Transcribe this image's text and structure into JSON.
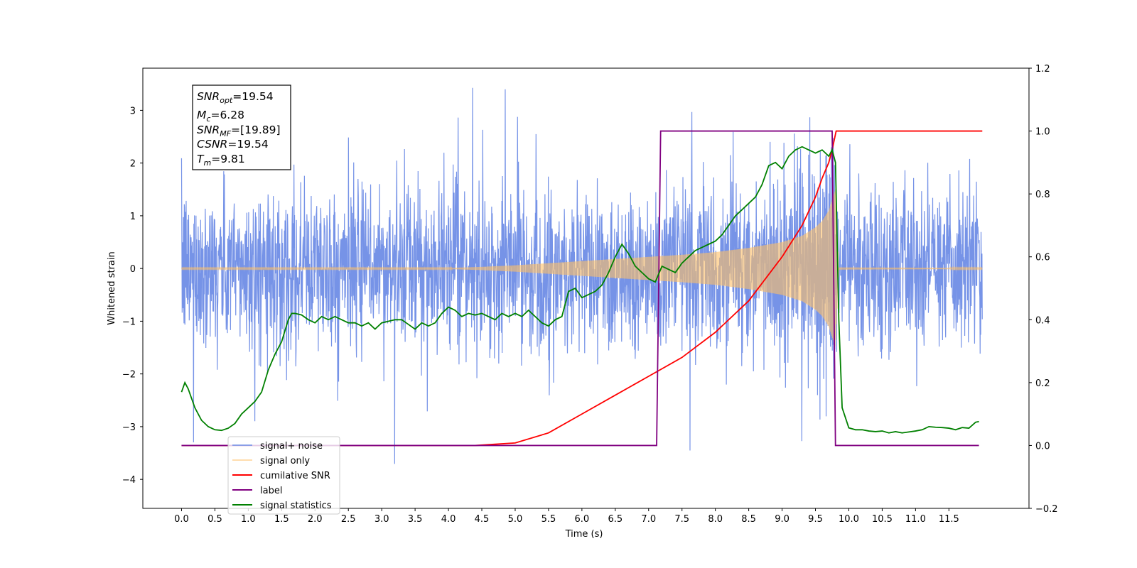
{
  "chart_data": {
    "type": "line",
    "xlabel": "Time (s)",
    "ylabel_left": "Whitened strain",
    "ylabel_right": "",
    "xlim": [
      -0.58,
      12.7
    ],
    "ylim_left": [
      -4.55,
      3.8
    ],
    "ylim_right": [
      -0.2,
      1.2
    ],
    "x_ticks": [
      0.0,
      0.5,
      1.0,
      1.5,
      2.0,
      2.5,
      3.0,
      3.5,
      4.0,
      4.5,
      5.0,
      5.5,
      6.0,
      6.5,
      7.0,
      7.5,
      8.0,
      8.5,
      9.0,
      9.5,
      10.0,
      10.5,
      11.0,
      11.5
    ],
    "x_tick_labels": [
      "0.0",
      "0.5",
      "1.0",
      "1.5",
      "2.0",
      "2.5",
      "3.0",
      "3.5",
      "4.0",
      "4.5",
      "5.0",
      "5.5",
      "6.0",
      "6.5",
      "7.0",
      "7.5",
      "8.0",
      "8.5",
      "9.0",
      "9.5",
      "10.0",
      "10.5",
      "11.0",
      "11.5"
    ],
    "y_left_ticks": [
      3,
      2,
      1,
      0,
      -1,
      -2,
      -3,
      -4
    ],
    "y_left_tick_labels": [
      "3",
      "2",
      "1",
      "0",
      "−1",
      "−2",
      "−3",
      "−4"
    ],
    "y_right_ticks": [
      1.2,
      1.0,
      0.8,
      0.6,
      0.4,
      0.2,
      0.0,
      -0.2
    ],
    "y_right_tick_labels": [
      "1.2",
      "1.0",
      "0.8",
      "0.6",
      "0.4",
      "0.2",
      "0.0",
      "−0.2"
    ],
    "grid": false,
    "legend_location": "lower-left",
    "stats_box": {
      "snr_opt": "19.54",
      "mc": "6.28",
      "snr_mf": "[19.89]",
      "csnr": "19.54",
      "tm": "9.81"
    },
    "series": [
      {
        "name": "signal+ noise",
        "axis": "left",
        "color": "#6f8de6",
        "description": "whitened Gaussian noise plus chirp",
        "time_range": [
          0.0,
          12.0
        ],
        "envelope_max": 3.45,
        "envelope_min": -4.05
      },
      {
        "name": "signal only",
        "axis": "left",
        "color": "#ffbf66",
        "description": "chirp waveform, merger near 9.8 s",
        "envelope": {
          "x": [
            0.0,
            4.0,
            4.5,
            5.0,
            5.5,
            6.0,
            6.5,
            7.0,
            7.5,
            8.0,
            8.5,
            9.0,
            9.3,
            9.5,
            9.6,
            9.7,
            9.75,
            9.8,
            9.85,
            12.0
          ],
          "y": [
            0.01,
            0.01,
            0.03,
            0.06,
            0.1,
            0.14,
            0.18,
            0.22,
            0.26,
            0.31,
            0.39,
            0.5,
            0.62,
            0.78,
            0.9,
            1.1,
            1.3,
            1.5,
            0.02,
            0.01
          ]
        }
      },
      {
        "name": "cumilative SNR",
        "axis": "right",
        "color": "#ff0000",
        "x": [
          0.0,
          4.4,
          5.0,
          5.5,
          6.0,
          6.5,
          7.0,
          7.5,
          8.0,
          8.5,
          9.0,
          9.3,
          9.5,
          9.6,
          9.7,
          9.75,
          9.8,
          9.81,
          12.0
        ],
        "y": [
          0.0,
          0.0,
          0.008,
          0.04,
          0.1,
          0.16,
          0.22,
          0.28,
          0.36,
          0.46,
          0.6,
          0.7,
          0.79,
          0.85,
          0.9,
          0.94,
          0.99,
          1.0,
          1.0
        ]
      },
      {
        "name": "label",
        "axis": "right",
        "color": "#800080",
        "x": [
          0.0,
          7.12,
          7.18,
          9.75,
          9.8,
          11.95
        ],
        "y": [
          0.0,
          0.0,
          1.0,
          1.0,
          0.0,
          0.0
        ]
      },
      {
        "name": "signal statistics",
        "axis": "right",
        "color": "#008000",
        "x": [
          0.0,
          0.05,
          0.1,
          0.2,
          0.3,
          0.4,
          0.5,
          0.6,
          0.7,
          0.8,
          0.9,
          1.0,
          1.1,
          1.2,
          1.3,
          1.4,
          1.5,
          1.6,
          1.65,
          1.7,
          1.8,
          1.9,
          2.0,
          2.1,
          2.2,
          2.3,
          2.4,
          2.5,
          2.6,
          2.7,
          2.8,
          2.9,
          3.0,
          3.1,
          3.2,
          3.3,
          3.4,
          3.5,
          3.6,
          3.7,
          3.8,
          3.9,
          4.0,
          4.1,
          4.2,
          4.3,
          4.4,
          4.5,
          4.6,
          4.7,
          4.8,
          4.9,
          5.0,
          5.1,
          5.2,
          5.3,
          5.4,
          5.5,
          5.6,
          5.7,
          5.8,
          5.9,
          6.0,
          6.1,
          6.2,
          6.3,
          6.4,
          6.5,
          6.6,
          6.7,
          6.8,
          6.9,
          7.0,
          7.1,
          7.2,
          7.3,
          7.4,
          7.5,
          7.6,
          7.7,
          7.8,
          7.9,
          8.0,
          8.1,
          8.2,
          8.3,
          8.4,
          8.5,
          8.6,
          8.7,
          8.8,
          8.9,
          9.0,
          9.1,
          9.2,
          9.3,
          9.4,
          9.5,
          9.6,
          9.7,
          9.75,
          9.8,
          9.85,
          9.9,
          10.0,
          10.1,
          10.2,
          10.3,
          10.4,
          10.5,
          10.6,
          10.7,
          10.8,
          10.9,
          11.0,
          11.1,
          11.2,
          11.3,
          11.4,
          11.5,
          11.6,
          11.7,
          11.8,
          11.9,
          11.95
        ],
        "y": [
          0.17,
          0.2,
          0.18,
          0.12,
          0.08,
          0.06,
          0.05,
          0.048,
          0.055,
          0.07,
          0.1,
          0.12,
          0.14,
          0.17,
          0.24,
          0.29,
          0.33,
          0.4,
          0.42,
          0.42,
          0.415,
          0.4,
          0.39,
          0.41,
          0.4,
          0.41,
          0.4,
          0.39,
          0.39,
          0.38,
          0.39,
          0.37,
          0.39,
          0.395,
          0.4,
          0.4,
          0.385,
          0.37,
          0.39,
          0.38,
          0.39,
          0.42,
          0.44,
          0.43,
          0.41,
          0.42,
          0.415,
          0.42,
          0.41,
          0.4,
          0.42,
          0.41,
          0.42,
          0.41,
          0.43,
          0.41,
          0.39,
          0.38,
          0.4,
          0.41,
          0.49,
          0.5,
          0.47,
          0.48,
          0.49,
          0.51,
          0.55,
          0.6,
          0.64,
          0.61,
          0.57,
          0.55,
          0.53,
          0.52,
          0.57,
          0.56,
          0.55,
          0.58,
          0.6,
          0.62,
          0.63,
          0.64,
          0.65,
          0.67,
          0.7,
          0.73,
          0.75,
          0.77,
          0.79,
          0.83,
          0.89,
          0.9,
          0.88,
          0.92,
          0.94,
          0.95,
          0.94,
          0.93,
          0.94,
          0.92,
          0.94,
          0.9,
          0.4,
          0.12,
          0.056,
          0.05,
          0.05,
          0.046,
          0.044,
          0.046,
          0.04,
          0.044,
          0.04,
          0.043,
          0.046,
          0.05,
          0.06,
          0.058,
          0.057,
          0.055,
          0.05,
          0.057,
          0.055,
          0.074,
          0.076
        ]
      }
    ]
  }
}
